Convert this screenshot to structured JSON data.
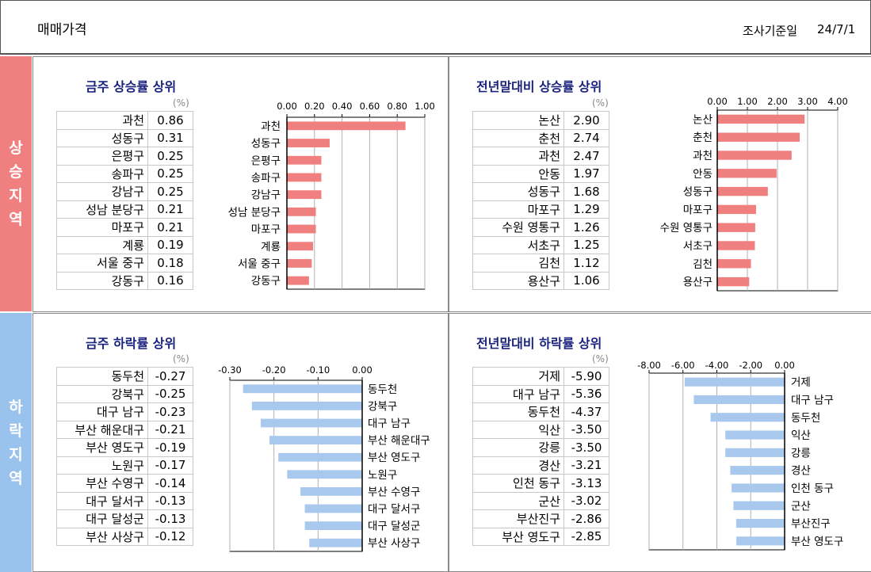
{
  "header": {
    "title": "매매가격",
    "date_label": "조사기준일",
    "date_value": "24/7/1"
  },
  "bands": {
    "rise": "상승지역",
    "fall": "하락지역"
  },
  "unit": "(%)",
  "colors": {
    "rise_bar": "#f08080",
    "fall_bar": "#a8c8ee",
    "title": "#1a237e"
  },
  "chart_data": [
    {
      "type": "bar",
      "title": "금주 상승률 상위",
      "xlim": [
        0,
        1.0
      ],
      "ticks": [
        "0.00",
        "0.20",
        "0.40",
        "0.60",
        "0.80",
        "1.00"
      ],
      "categories": [
        "과천",
        "성동구",
        "은평구",
        "송파구",
        "강남구",
        "성남 분당구",
        "마포구",
        "계룡",
        "서울 중구",
        "강동구"
      ],
      "values": [
        0.86,
        0.31,
        0.25,
        0.25,
        0.25,
        0.21,
        0.21,
        0.19,
        0.18,
        0.16
      ],
      "labels": [
        "0.86",
        "0.31",
        "0.25",
        "0.25",
        "0.25",
        "0.21",
        "0.21",
        "0.19",
        "0.18",
        "0.16"
      ]
    },
    {
      "type": "bar",
      "title": "전년말대비 상승률 상위",
      "xlim": [
        0,
        4.0
      ],
      "ticks": [
        "0.00",
        "1.00",
        "2.00",
        "3.00",
        "4.00"
      ],
      "categories": [
        "논산",
        "춘천",
        "과천",
        "안동",
        "성동구",
        "마포구",
        "수원 영통구",
        "서초구",
        "김천",
        "용산구"
      ],
      "values": [
        2.9,
        2.74,
        2.47,
        1.97,
        1.68,
        1.29,
        1.26,
        1.25,
        1.12,
        1.06
      ],
      "labels": [
        "2.90",
        "2.74",
        "2.47",
        "1.97",
        "1.68",
        "1.29",
        "1.26",
        "1.25",
        "1.12",
        "1.06"
      ]
    },
    {
      "type": "bar",
      "title": "금주 하락률 상위",
      "xlim": [
        -0.3,
        0
      ],
      "ticks": [
        "-0.30",
        "-0.20",
        "-0.10",
        "0.00"
      ],
      "categories": [
        "동두천",
        "강북구",
        "대구 남구",
        "부산 해운대구",
        "부산 영도구",
        "노원구",
        "부산 수영구",
        "대구 달서구",
        "대구 달성군",
        "부산 사상구"
      ],
      "values": [
        -0.27,
        -0.25,
        -0.23,
        -0.21,
        -0.19,
        -0.17,
        -0.14,
        -0.13,
        -0.13,
        -0.12
      ],
      "labels": [
        "-0.27",
        "-0.25",
        "-0.23",
        "-0.21",
        "-0.19",
        "-0.17",
        "-0.14",
        "-0.13",
        "-0.13",
        "-0.12"
      ]
    },
    {
      "type": "bar",
      "title": "전년말대비 하락률 상위",
      "xlim": [
        -8.0,
        0
      ],
      "ticks": [
        "-8.00",
        "-6.00",
        "-4.00",
        "-2.00",
        "0.00"
      ],
      "categories": [
        "거제",
        "대구 남구",
        "동두천",
        "익산",
        "강릉",
        "경산",
        "인천 동구",
        "군산",
        "부산진구",
        "부산 영도구"
      ],
      "values": [
        -5.9,
        -5.36,
        -4.37,
        -3.5,
        -3.5,
        -3.21,
        -3.13,
        -3.02,
        -2.86,
        -2.85
      ],
      "labels": [
        "-5.90",
        "-5.36",
        "-4.37",
        "-3.50",
        "-3.50",
        "-3.21",
        "-3.13",
        "-3.02",
        "-2.86",
        "-2.85"
      ]
    }
  ]
}
